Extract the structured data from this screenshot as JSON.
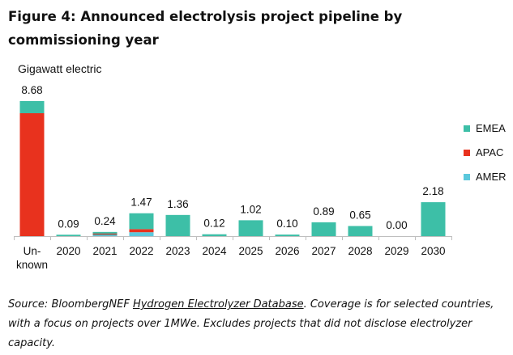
{
  "title": "Figure 4: Announced electrolysis project pipeline by commissioning year",
  "chart_data": {
    "type": "bar",
    "stacked": true,
    "unit_label": "Gigawatt electric",
    "categories": [
      "Un-known",
      "2020",
      "2021",
      "2022",
      "2023",
      "2024",
      "2025",
      "2026",
      "2027",
      "2028",
      "2029",
      "2030"
    ],
    "category_lines": [
      [
        "Un-",
        "known"
      ],
      [
        "2020"
      ],
      [
        "2021"
      ],
      [
        "2022"
      ],
      [
        "2023"
      ],
      [
        "2024"
      ],
      [
        "2025"
      ],
      [
        "2026"
      ],
      [
        "2027"
      ],
      [
        "2028"
      ],
      [
        "2029"
      ],
      [
        "2030"
      ]
    ],
    "totals": [
      8.68,
      0.09,
      0.24,
      1.47,
      1.36,
      0.12,
      1.02,
      0.1,
      0.89,
      0.65,
      0.0,
      2.18
    ],
    "total_labels": [
      "8.68",
      "0.09",
      "0.24",
      "1.47",
      "1.36",
      "0.12",
      "1.02",
      "0.10",
      "0.89",
      "0.65",
      "0.00",
      "2.18"
    ],
    "series": [
      {
        "name": "AMER",
        "color": "#5bc8dc",
        "values": [
          0.0,
          0.0,
          0.05,
          0.25,
          0.0,
          0.0,
          0.0,
          0.0,
          0.0,
          0.0,
          0.0,
          0.0
        ]
      },
      {
        "name": "APAC",
        "color": "#e8321e",
        "values": [
          7.9,
          0.0,
          0.1,
          0.2,
          0.0,
          0.0,
          0.0,
          0.0,
          0.0,
          0.0,
          0.0,
          0.0
        ]
      },
      {
        "name": "EMEA",
        "color": "#3dbfa7",
        "values": [
          0.78,
          0.09,
          0.09,
          1.02,
          1.36,
          0.12,
          1.02,
          0.1,
          0.89,
          0.65,
          0.0,
          2.18
        ]
      }
    ],
    "extra_colors": {
      "2021_APAC": "#9b5a4a"
    },
    "legend_order": [
      "EMEA",
      "APAC",
      "AMER"
    ],
    "legend_position": "right",
    "ylim": [
      0,
      8.68
    ],
    "grid": false
  },
  "source": {
    "prefix": "Source: BloombergNEF ",
    "link": "Hydrogen Electrolyzer Database",
    "suffix": ". Coverage is for selected countries, with a focus on projects over 1MWe. Excludes projects that did not disclose electrolyzer capacity."
  }
}
